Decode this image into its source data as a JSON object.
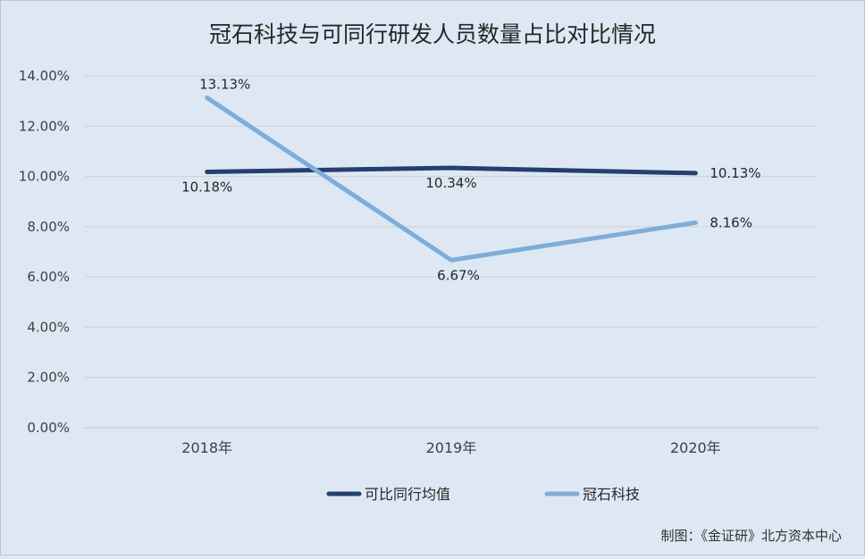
{
  "chart_data": {
    "type": "line",
    "title": "冠石科技与可同行研发人员数量占比对比情况",
    "xlabel": "",
    "ylabel": "",
    "categories": [
      "2018年",
      "2019年",
      "2020年"
    ],
    "ylim": [
      0,
      14
    ],
    "yticks": [
      "0.00%",
      "2.00%",
      "4.00%",
      "6.00%",
      "8.00%",
      "10.00%",
      "12.00%",
      "14.00%"
    ],
    "grid": true,
    "legend": "bottom",
    "series": [
      {
        "name": "可比同行均值",
        "color": "#243f6e",
        "values": [
          10.18,
          10.34,
          10.13
        ],
        "labels": [
          "10.18%",
          "10.34%",
          "10.13%"
        ]
      },
      {
        "name": "冠石科技",
        "color": "#7fadd9",
        "values": [
          13.13,
          6.67,
          8.16
        ],
        "labels": [
          "13.13%",
          "6.67%",
          "8.16%"
        ]
      }
    ]
  },
  "footer": {
    "credit": "制图：《金证研》北方资本中心"
  }
}
